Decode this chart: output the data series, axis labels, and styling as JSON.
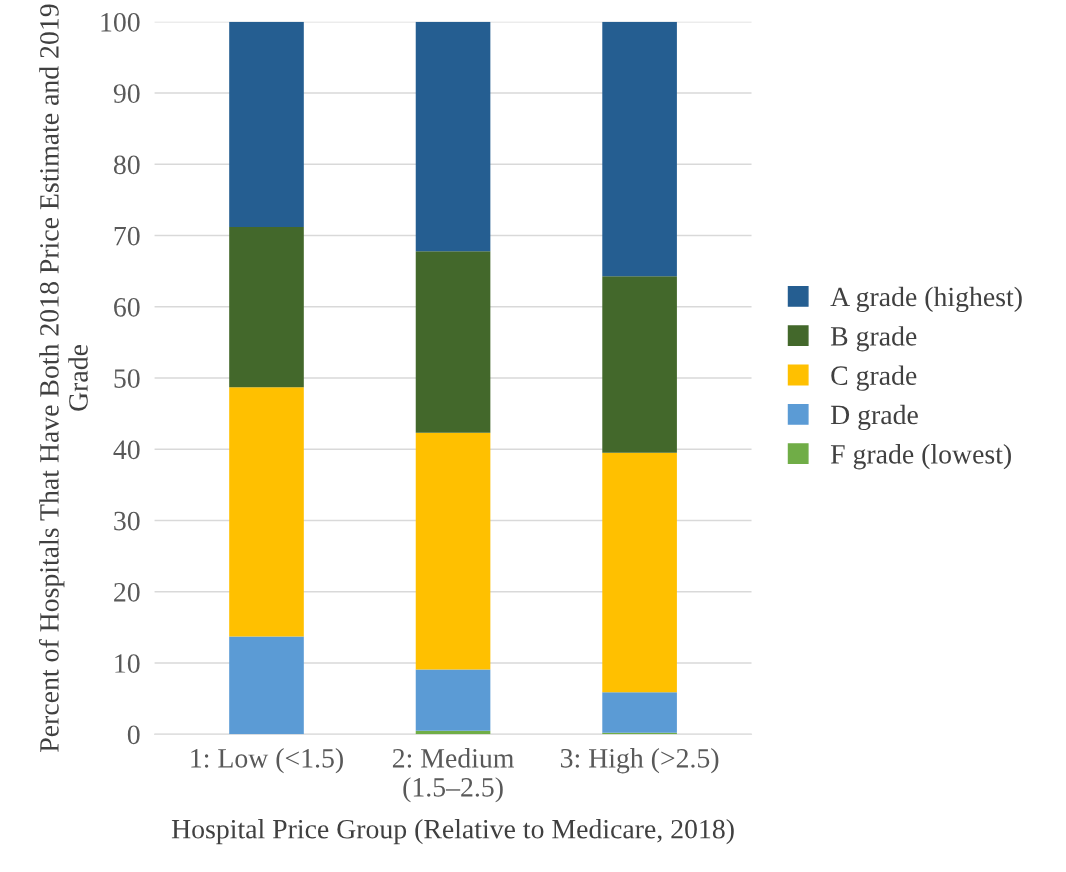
{
  "chart_data": {
    "type": "bar",
    "stacked": true,
    "xlabel": "Hospital Price Group (Relative to Medicare, 2018)",
    "ylabel": "Percent of Hospitals That Have Both 2018 Price Estimate and 2019 Grade",
    "categories": [
      "1: Low (<1.5)",
      "2: Medium\n(1.5–2.5)",
      "3: High (>2.5)"
    ],
    "series": [
      {
        "name": "F grade (lowest)",
        "color": "#70ad47",
        "values": [
          0,
          0.5,
          0.2
        ]
      },
      {
        "name": "D grade",
        "color": "#5b9bd5",
        "values": [
          13.7,
          8.6,
          5.7
        ]
      },
      {
        "name": "C grade",
        "color": "#ffc000",
        "values": [
          35.0,
          33.2,
          33.6
        ]
      },
      {
        "name": "B grade",
        "color": "#43682b",
        "values": [
          22.5,
          25.5,
          24.8
        ]
      },
      {
        "name": "A grade (highest)",
        "color": "#255e91",
        "values": [
          28.8,
          32.2,
          35.7
        ]
      }
    ],
    "ylim": [
      0,
      100
    ],
    "yticks": [
      0,
      10,
      20,
      30,
      40,
      50,
      60,
      70,
      80,
      90,
      100
    ],
    "grid": "y",
    "legend": "right"
  }
}
